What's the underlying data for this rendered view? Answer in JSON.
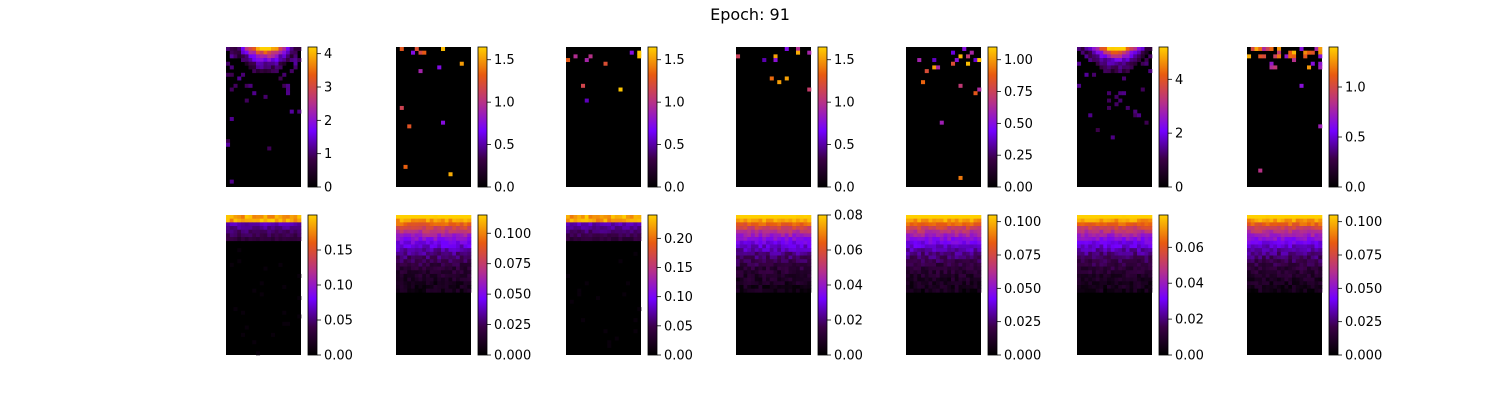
{
  "figure": {
    "title": "Epoch: 91"
  },
  "colors": {
    "colormap": "gnuplot",
    "stops": [
      "#000000",
      "#3a0046",
      "#7300ff",
      "#b5308a",
      "#e85a10",
      "#ffd000"
    ]
  },
  "chart_data": [
    {
      "type": "heatmap",
      "row": 1,
      "col": 1,
      "colorbar": {
        "range": [
          0,
          4.2
        ],
        "tick_labels": [
          "0",
          "1",
          "2",
          "3",
          "4"
        ],
        "tick_values": [
          0,
          1,
          2,
          3,
          4
        ]
      },
      "pattern": "sparse-top-hotspot"
    },
    {
      "type": "heatmap",
      "row": 1,
      "col": 2,
      "colorbar": {
        "range": [
          0,
          1.65
        ],
        "tick_labels": [
          "0.0",
          "0.5",
          "1.0",
          "1.5"
        ],
        "tick_values": [
          0,
          0.5,
          1.0,
          1.5
        ]
      },
      "pattern": "sparse"
    },
    {
      "type": "heatmap",
      "row": 1,
      "col": 3,
      "colorbar": {
        "range": [
          0,
          1.65
        ],
        "tick_labels": [
          "0.0",
          "0.5",
          "1.0",
          "1.5"
        ],
        "tick_values": [
          0,
          0.5,
          1.0,
          1.5
        ]
      },
      "pattern": "sparse"
    },
    {
      "type": "heatmap",
      "row": 1,
      "col": 4,
      "colorbar": {
        "range": [
          0,
          1.65
        ],
        "tick_labels": [
          "0.0",
          "0.5",
          "1.0",
          "1.5"
        ],
        "tick_values": [
          0,
          0.5,
          1.0,
          1.5
        ]
      },
      "pattern": "sparse"
    },
    {
      "type": "heatmap",
      "row": 1,
      "col": 5,
      "colorbar": {
        "range": [
          0,
          1.1
        ],
        "tick_labels": [
          "0.00",
          "0.25",
          "0.50",
          "0.75",
          "1.00"
        ],
        "tick_values": [
          0,
          0.25,
          0.5,
          0.75,
          1.0
        ]
      },
      "pattern": "sparse"
    },
    {
      "type": "heatmap",
      "row": 1,
      "col": 6,
      "colorbar": {
        "range": [
          0,
          5.2
        ],
        "tick_labels": [
          "0",
          "2",
          "4"
        ],
        "tick_values": [
          0,
          2,
          4
        ]
      },
      "pattern": "sparse-top-hotspot"
    },
    {
      "type": "heatmap",
      "row": 1,
      "col": 7,
      "colorbar": {
        "range": [
          0,
          1.4
        ],
        "tick_labels": [
          "0.0",
          "0.5",
          "1.0"
        ],
        "tick_values": [
          0,
          0.5,
          1.0
        ]
      },
      "pattern": "sparse-top-band"
    },
    {
      "type": "heatmap",
      "row": 2,
      "col": 1,
      "colorbar": {
        "range": [
          0,
          0.2
        ],
        "tick_labels": [
          "0.00",
          "0.05",
          "0.10",
          "0.15"
        ],
        "tick_values": [
          0,
          0.05,
          0.1,
          0.15
        ]
      },
      "pattern": "gradient-thin"
    },
    {
      "type": "heatmap",
      "row": 2,
      "col": 2,
      "colorbar": {
        "range": [
          0,
          0.115
        ],
        "tick_labels": [
          "0.000",
          "0.025",
          "0.050",
          "0.075",
          "0.100"
        ],
        "tick_values": [
          0,
          0.025,
          0.05,
          0.075,
          0.1
        ]
      },
      "pattern": "gradient-deep"
    },
    {
      "type": "heatmap",
      "row": 2,
      "col": 3,
      "colorbar": {
        "range": [
          0,
          0.24
        ],
        "tick_labels": [
          "0.00",
          "0.05",
          "0.10",
          "0.15",
          "0.20"
        ],
        "tick_values": [
          0,
          0.05,
          0.1,
          0.15,
          0.2
        ]
      },
      "pattern": "gradient-thin"
    },
    {
      "type": "heatmap",
      "row": 2,
      "col": 4,
      "colorbar": {
        "range": [
          0,
          0.08
        ],
        "tick_labels": [
          "0.00",
          "0.02",
          "0.04",
          "0.06",
          "0.08"
        ],
        "tick_values": [
          0,
          0.02,
          0.04,
          0.06,
          0.08
        ]
      },
      "pattern": "gradient-deep"
    },
    {
      "type": "heatmap",
      "row": 2,
      "col": 5,
      "colorbar": {
        "range": [
          0,
          0.105
        ],
        "tick_labels": [
          "0.000",
          "0.025",
          "0.050",
          "0.075",
          "0.100"
        ],
        "tick_values": [
          0,
          0.025,
          0.05,
          0.075,
          0.1
        ]
      },
      "pattern": "gradient-deep"
    },
    {
      "type": "heatmap",
      "row": 2,
      "col": 6,
      "colorbar": {
        "range": [
          0,
          0.078
        ],
        "tick_labels": [
          "0.00",
          "0.02",
          "0.04",
          "0.06"
        ],
        "tick_values": [
          0,
          0.02,
          0.04,
          0.06
        ]
      },
      "pattern": "gradient-deep"
    },
    {
      "type": "heatmap",
      "row": 2,
      "col": 7,
      "colorbar": {
        "range": [
          0,
          0.105
        ],
        "tick_labels": [
          "0.000",
          "0.025",
          "0.050",
          "0.075",
          "0.100"
        ],
        "tick_values": [
          0,
          0.025,
          0.05,
          0.075,
          0.1
        ]
      },
      "pattern": "gradient-deep"
    }
  ]
}
